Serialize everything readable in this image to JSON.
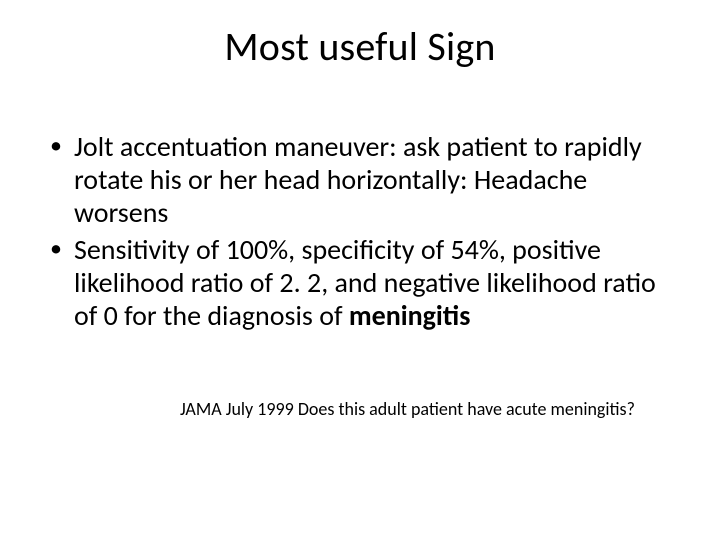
{
  "slide": {
    "title": "Most useful Sign",
    "bullets": [
      {
        "text": "Jolt accentuation maneuver: ask patient to rapidly rotate his or her head horizontally: Headache worsens"
      },
      {
        "prefix": "Sensitivity of 100%, specificity of 54%, positive likelihood ratio of 2. 2, and negative likelihood ratio of 0 for the diagnosis of ",
        "bold": "meningitis"
      }
    ],
    "citation": "JAMA July 1999 Does this adult patient have acute meningitis?"
  },
  "style": {
    "background_color": "#ffffff",
    "text_color": "#000000",
    "title_fontsize": 40,
    "body_fontsize": 28,
    "citation_fontsize": 18,
    "font_family": "Calibri"
  }
}
